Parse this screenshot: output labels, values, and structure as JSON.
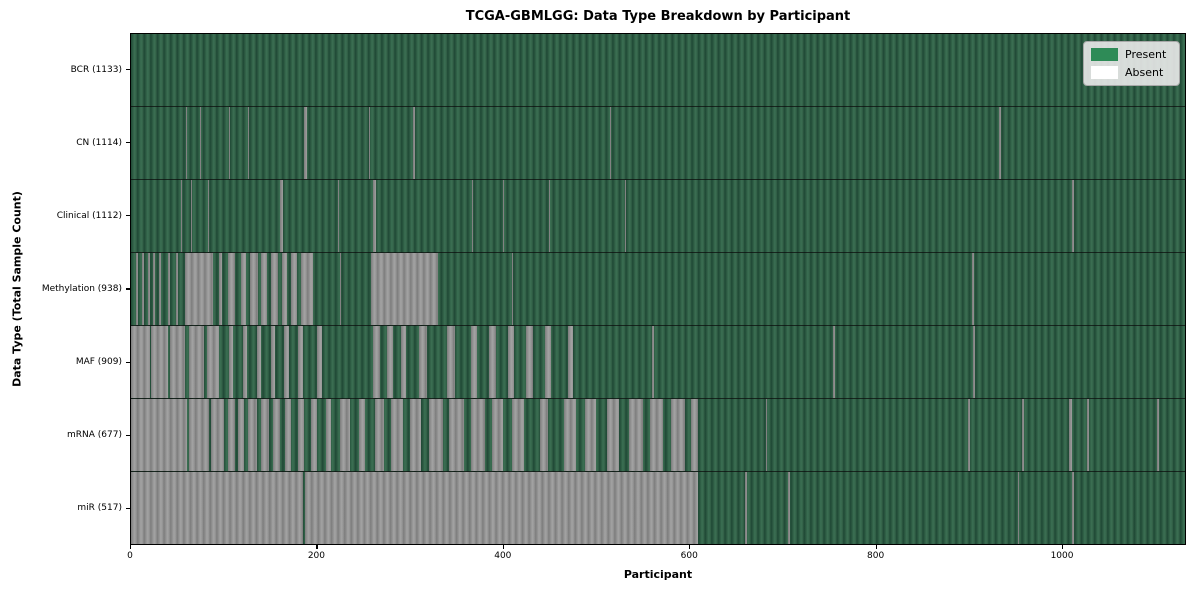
{
  "chart_data": {
    "type": "heatmap",
    "title": "TCGA-GBMLGG: Data Type Breakdown by Participant",
    "xlabel": "Participant",
    "ylabel": "Data Type (Total Sample Count)",
    "x_max": 1133,
    "x_ticks": [
      0,
      200,
      400,
      600,
      800,
      1000
    ],
    "grid": false,
    "legend_position": "upper right",
    "legend": [
      {
        "label": "Present",
        "color": "#2e8b57"
      },
      {
        "label": "Absent",
        "color": "#ffffff"
      }
    ],
    "cell_states": [
      "present",
      "absent"
    ],
    "rows": [
      {
        "label": "BCR",
        "total_sample_count": 1133,
        "display": "BCR (1133)",
        "absent_ranges": []
      },
      {
        "label": "CN",
        "total_sample_count": 1114,
        "display": "CN (1114)",
        "absent_ranges": [
          [
            59,
            60
          ],
          [
            74,
            75
          ],
          [
            105,
            106
          ],
          [
            126,
            127
          ],
          [
            186,
            189
          ],
          [
            256,
            257
          ],
          [
            303,
            305
          ],
          [
            515,
            516
          ],
          [
            933,
            935
          ]
        ]
      },
      {
        "label": "Clinical",
        "total_sample_count": 1112,
        "display": "Clinical (1112)",
        "absent_ranges": [
          [
            54,
            55
          ],
          [
            64,
            65
          ],
          [
            83,
            84
          ],
          [
            160,
            163
          ],
          [
            223,
            224
          ],
          [
            260,
            263
          ],
          [
            367,
            368
          ],
          [
            400,
            401
          ],
          [
            449,
            450
          ],
          [
            531,
            532
          ],
          [
            1012,
            1014
          ]
        ]
      },
      {
        "label": "Methylation",
        "total_sample_count": 938,
        "display": "Methylation (938)",
        "absent_ranges": [
          [
            5,
            8
          ],
          [
            12,
            14
          ],
          [
            18,
            20
          ],
          [
            24,
            26
          ],
          [
            30,
            32
          ],
          [
            40,
            42
          ],
          [
            48,
            50
          ],
          [
            58,
            88
          ],
          [
            95,
            98
          ],
          [
            104,
            112
          ],
          [
            118,
            124
          ],
          [
            128,
            136
          ],
          [
            140,
            146
          ],
          [
            150,
            158
          ],
          [
            162,
            168
          ],
          [
            172,
            178
          ],
          [
            183,
            196
          ],
          [
            225,
            226
          ],
          [
            258,
            330
          ],
          [
            410,
            411
          ],
          [
            904,
            906
          ]
        ]
      },
      {
        "label": "MAF",
        "total_sample_count": 909,
        "display": "MAF (909)",
        "absent_ranges": [
          [
            0,
            20
          ],
          [
            22,
            40
          ],
          [
            42,
            58
          ],
          [
            62,
            78
          ],
          [
            82,
            95
          ],
          [
            105,
            110
          ],
          [
            120,
            125
          ],
          [
            135,
            140
          ],
          [
            150,
            155
          ],
          [
            165,
            170
          ],
          [
            180,
            185
          ],
          [
            200,
            205
          ],
          [
            260,
            268
          ],
          [
            275,
            282
          ],
          [
            290,
            296
          ],
          [
            310,
            318
          ],
          [
            340,
            348
          ],
          [
            365,
            372
          ],
          [
            385,
            392
          ],
          [
            405,
            412
          ],
          [
            425,
            432
          ],
          [
            445,
            452
          ],
          [
            470,
            475
          ],
          [
            560,
            562
          ],
          [
            755,
            757
          ],
          [
            905,
            907
          ]
        ]
      },
      {
        "label": "mRNA",
        "total_sample_count": 677,
        "display": "mRNA (677)",
        "absent_ranges": [
          [
            0,
            60
          ],
          [
            62,
            84
          ],
          [
            86,
            100
          ],
          [
            104,
            112
          ],
          [
            115,
            122
          ],
          [
            126,
            135
          ],
          [
            140,
            148
          ],
          [
            153,
            160
          ],
          [
            166,
            172
          ],
          [
            180,
            186
          ],
          [
            194,
            200
          ],
          [
            210,
            215
          ],
          [
            225,
            235
          ],
          [
            245,
            252
          ],
          [
            262,
            272
          ],
          [
            280,
            292
          ],
          [
            300,
            312
          ],
          [
            320,
            335
          ],
          [
            342,
            358
          ],
          [
            365,
            380
          ],
          [
            388,
            400
          ],
          [
            410,
            422
          ],
          [
            440,
            448
          ],
          [
            465,
            478
          ],
          [
            488,
            500
          ],
          [
            512,
            525
          ],
          [
            535,
            550
          ],
          [
            558,
            572
          ],
          [
            580,
            595
          ],
          [
            602,
            610
          ],
          [
            683,
            684
          ],
          [
            900,
            902
          ],
          [
            958,
            960
          ],
          [
            1008,
            1012
          ],
          [
            1028,
            1030
          ],
          [
            1103,
            1105
          ]
        ]
      },
      {
        "label": "miR",
        "total_sample_count": 517,
        "display": "miR (517)",
        "absent_ranges": [
          [
            0,
            185
          ],
          [
            187,
            250
          ],
          [
            251,
            610
          ],
          [
            660,
            662
          ],
          [
            706,
            708
          ],
          [
            953,
            955
          ],
          [
            1011,
            1014
          ]
        ]
      }
    ]
  },
  "colors": {
    "present_fill": "#2e8b57",
    "present_stripe_dark": "#1f4835",
    "present_stripe_light": "#3b6f53",
    "absent_fill": "#ffffff",
    "absent_stripe_dark": "#7d7d7d",
    "absent_stripe_light": "#a3a3a3",
    "axis": "#000000",
    "legend_background": "#eaeaea"
  }
}
